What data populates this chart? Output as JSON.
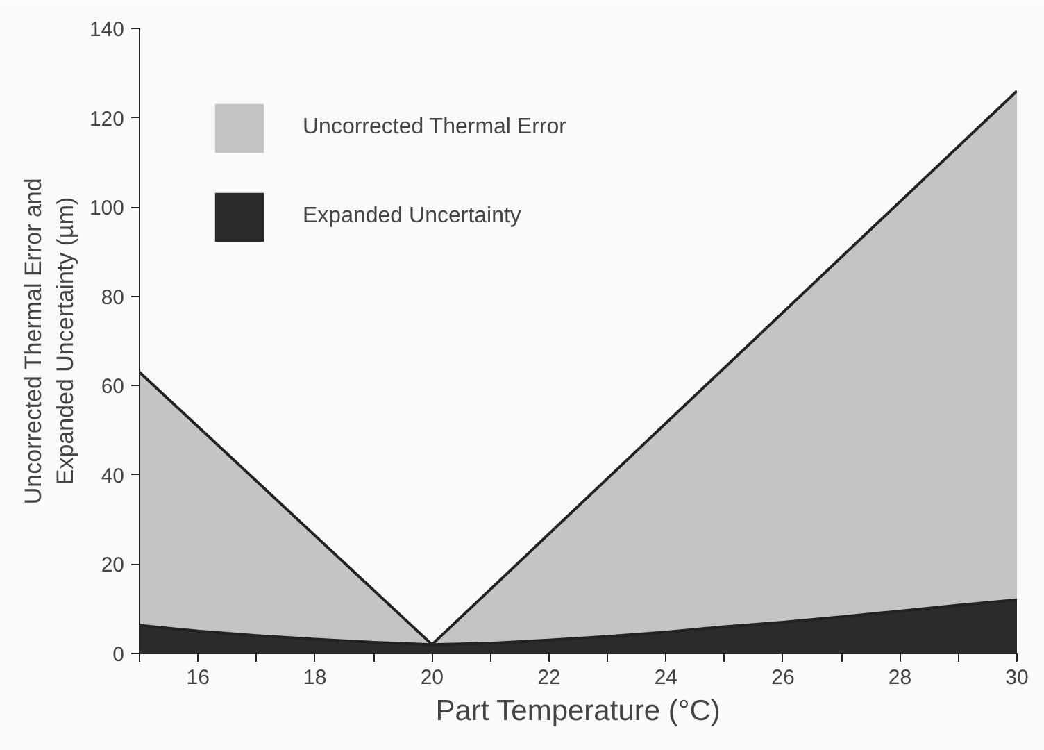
{
  "chart_data": {
    "type": "area",
    "xlabel": "Part Temperature (°C)",
    "ylabel": "Uncorrected Thermal Error and\nExpanded Uncertainty (µm)",
    "series": [
      {
        "name": "Uncorrected Thermal Error",
        "color": "#c4c4c4",
        "x": [
          15,
          20,
          30
        ],
        "values": [
          63,
          2,
          126
        ]
      },
      {
        "name": "Expanded Uncertainty",
        "color": "#2b2b2b",
        "x": [
          15,
          16,
          17,
          18,
          19,
          20,
          21,
          22,
          23,
          24,
          25,
          26,
          27,
          28,
          29,
          30
        ],
        "values": [
          6.3,
          5,
          4,
          3.2,
          2.5,
          2,
          2.3,
          3,
          3.8,
          4.8,
          6,
          7,
          8.2,
          9.5,
          10.8,
          12
        ]
      }
    ],
    "xlim": [
      15,
      30
    ],
    "xticks": [
      {
        "value": 15,
        "label": null
      },
      16,
      {
        "value": 17,
        "label": null
      },
      18,
      {
        "value": 19,
        "label": null
      },
      20,
      {
        "value": 21,
        "label": null
      },
      22,
      {
        "value": 23,
        "label": null
      },
      24,
      {
        "value": 25,
        "label": null
      },
      26,
      {
        "value": 27,
        "label": null
      },
      28,
      {
        "value": 29,
        "label": null
      },
      30
    ],
    "ylim": [
      0,
      140
    ],
    "yticks": [
      0,
      20,
      40,
      60,
      80,
      100,
      120,
      140
    ],
    "grid": false,
    "legend": "top left"
  }
}
